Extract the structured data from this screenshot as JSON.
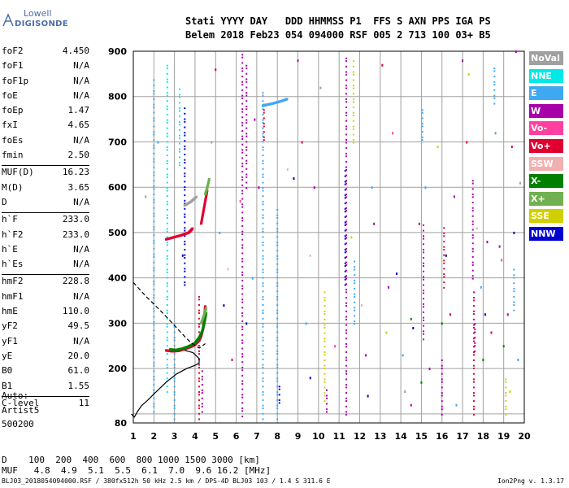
{
  "logo": {
    "line1": "Lowell",
    "line2": "DIGISONDE"
  },
  "header": {
    "row1": "Stati YYYY DAY   DDD HHMMSS P1  FFS S AXN PPS IGA PS",
    "row2": "Belem 2018 Feb23 054 094000 RSF 005 2 713 100 03+ B5"
  },
  "params": [
    {
      "name": "foF2",
      "value": "4.450"
    },
    {
      "name": "foF1",
      "value": "N/A"
    },
    {
      "name": "foF1p",
      "value": "N/A"
    },
    {
      "name": "foE",
      "value": "N/A"
    },
    {
      "name": "foEp",
      "value": "1.47"
    },
    {
      "name": "fxI",
      "value": "4.65"
    },
    {
      "name": "foEs",
      "value": "N/A"
    },
    {
      "name": "fmin",
      "value": "2.50"
    },
    {
      "name": "MUF(D)",
      "value": "16.23"
    },
    {
      "name": "M(D)",
      "value": "3.65"
    },
    {
      "name": "D",
      "value": "N/A"
    },
    {
      "name": "h`F",
      "value": "233.0"
    },
    {
      "name": "h`F2",
      "value": "233.0"
    },
    {
      "name": "h`E",
      "value": "N/A"
    },
    {
      "name": "h`Es",
      "value": "N/A"
    },
    {
      "name": "hmF2",
      "value": "228.8"
    },
    {
      "name": "hmF1",
      "value": "N/A"
    },
    {
      "name": "hmE",
      "value": "110.0"
    },
    {
      "name": "yF2",
      "value": "49.5"
    },
    {
      "name": "yF1",
      "value": "N/A"
    },
    {
      "name": "yE",
      "value": "20.0"
    },
    {
      "name": "B0",
      "value": "61.0"
    },
    {
      "name": "B1",
      "value": "1.55"
    },
    {
      "name": "C-level",
      "value": "11"
    }
  ],
  "auto": {
    "line1": "Auto:",
    "line2": "Artist5",
    "line3": "500200"
  },
  "legend": [
    {
      "label": "NoVal",
      "color": "#a0a0a0"
    },
    {
      "label": "NNE",
      "color": "#00e8e8"
    },
    {
      "label": "E",
      "color": "#40a8f0"
    },
    {
      "label": "W",
      "color": "#a800a8"
    },
    {
      "label": "Vo-",
      "color": "#ff40a0"
    },
    {
      "label": "Vo+",
      "color": "#e00030"
    },
    {
      "label": "SSW",
      "color": "#f0b0b0"
    },
    {
      "label": "X-",
      "color": "#008000"
    },
    {
      "label": "X+",
      "color": "#70b050"
    },
    {
      "label": "SSE",
      "color": "#d0d000"
    },
    {
      "label": "NNW",
      "color": "#0000d0"
    }
  ],
  "footer": {
    "d_row": "D    100  200  400  600  800 1000 1500 3000 [km]",
    "muf_row": "MUF   4.8  4.9  5.1  5.5  6.1  7.0  9.6 16.2 [MHz]",
    "file_line": "BLJ03_2018054094000.RSF / 380fx512h 50 kHz 2.5 km / DPS-4D BLJ03 103 / 1.4 S 311.6 E",
    "version": "Ion2Png v. 1.3.17"
  },
  "chart_data": {
    "type": "scatter",
    "xlim": [
      1,
      20
    ],
    "ylim": [
      80,
      900
    ],
    "x_ticks": [
      1,
      2,
      3,
      4,
      5,
      6,
      7,
      8,
      9,
      10,
      11,
      12,
      13,
      14,
      15,
      16,
      17,
      18,
      19,
      20
    ],
    "y_ticks": [
      80,
      100,
      200,
      300,
      400,
      500,
      600,
      700,
      800,
      900
    ],
    "y_tick_labels": [
      "80",
      "",
      "200",
      "300",
      "400",
      "500",
      "600",
      "700",
      "800",
      "900"
    ],
    "grid": true,
    "profile_curve": [
      [
        0.9,
        100
      ],
      [
        1.05,
        93
      ],
      [
        1.2,
        105
      ],
      [
        1.4,
        118
      ],
      [
        1.7,
        130
      ],
      [
        2.1,
        148
      ],
      [
        2.6,
        170
      ],
      [
        3.1,
        188
      ],
      [
        3.6,
        200
      ],
      [
        4.0,
        207
      ],
      [
        4.2,
        212
      ],
      [
        4.2,
        222
      ],
      [
        3.9,
        235
      ],
      [
        3.5,
        240
      ]
    ],
    "dashed_curve": [
      [
        1.0,
        390
      ],
      [
        1.6,
        360
      ],
      [
        2.2,
        333
      ],
      [
        2.8,
        305
      ],
      [
        3.3,
        280
      ],
      [
        3.8,
        257
      ],
      [
        4.2,
        245
      ],
      [
        4.5,
        255
      ]
    ],
    "traces": [
      {
        "color": "#e00030",
        "points": [
          [
            2.6,
            240
          ],
          [
            2.9,
            238
          ],
          [
            3.2,
            239
          ],
          [
            3.5,
            243
          ],
          [
            3.8,
            248
          ],
          [
            4.0,
            253
          ],
          [
            4.2,
            262
          ],
          [
            4.3,
            272
          ],
          [
            4.4,
            290
          ],
          [
            4.45,
            315
          ],
          [
            4.5,
            340
          ]
        ]
      },
      {
        "color": "#008000",
        "points": [
          [
            2.8,
            242
          ],
          [
            3.1,
            241
          ],
          [
            3.4,
            244
          ],
          [
            3.7,
            249
          ],
          [
            4.0,
            256
          ],
          [
            4.2,
            268
          ],
          [
            4.35,
            282
          ],
          [
            4.45,
            300
          ],
          [
            4.55,
            325
          ]
        ]
      },
      {
        "color": "#70b050",
        "points": [
          [
            4.3,
            300
          ],
          [
            4.45,
            320
          ],
          [
            4.55,
            335
          ]
        ]
      },
      {
        "color": "#e00030",
        "points": [
          [
            2.6,
            485
          ],
          [
            3.0,
            490
          ],
          [
            3.4,
            495
          ],
          [
            3.7,
            500
          ],
          [
            3.9,
            510
          ]
        ]
      },
      {
        "color": "#e00030",
        "points": [
          [
            4.3,
            520
          ],
          [
            4.4,
            545
          ],
          [
            4.5,
            570
          ],
          [
            4.6,
            595
          ]
        ]
      },
      {
        "color": "#70b050",
        "points": [
          [
            4.5,
            585
          ],
          [
            4.6,
            600
          ],
          [
            4.7,
            620
          ]
        ]
      },
      {
        "color": "#a0a0a0",
        "points": [
          [
            3.5,
            560
          ],
          [
            3.8,
            568
          ],
          [
            4.1,
            580
          ]
        ]
      },
      {
        "color": "#40a8f0",
        "points": [
          [
            7.3,
            780
          ],
          [
            7.5,
            782
          ],
          [
            7.8,
            785
          ],
          [
            8.2,
            790
          ],
          [
            8.5,
            795
          ]
        ]
      }
    ],
    "columns": [
      {
        "x": 2.0,
        "y0": 100,
        "y1": 840,
        "color": "#40a8f0"
      },
      {
        "x": 2.65,
        "y0": 150,
        "y1": 880,
        "color": "#00e8e8"
      },
      {
        "x": 3.0,
        "y0": 90,
        "y1": 300,
        "color": "#40a8f0"
      },
      {
        "x": 3.25,
        "y0": 650,
        "y1": 820,
        "color": "#00e8e8"
      },
      {
        "x": 3.5,
        "y0": 380,
        "y1": 780,
        "color": "#0000d0"
      },
      {
        "x": 4.2,
        "y0": 90,
        "y1": 360,
        "color": "#e00030"
      },
      {
        "x": 4.35,
        "y0": 100,
        "y1": 200,
        "color": "#a800a8"
      },
      {
        "x": 6.3,
        "y0": 90,
        "y1": 900,
        "color": "#a800a8"
      },
      {
        "x": 6.5,
        "y0": 600,
        "y1": 870,
        "color": "#a800a8"
      },
      {
        "x": 7.3,
        "y0": 90,
        "y1": 820,
        "color": "#40a8f0"
      },
      {
        "x": 7.35,
        "y0": 700,
        "y1": 790,
        "color": "#e00030"
      },
      {
        "x": 8.0,
        "y0": 90,
        "y1": 560,
        "color": "#40a8f0"
      },
      {
        "x": 8.1,
        "y0": 120,
        "y1": 170,
        "color": "#0000d0"
      },
      {
        "x": 10.3,
        "y0": 130,
        "y1": 380,
        "color": "#d0d000"
      },
      {
        "x": 10.4,
        "y0": 100,
        "y1": 160,
        "color": "#a800a8"
      },
      {
        "x": 11.3,
        "y0": 380,
        "y1": 640,
        "color": "#0000d0"
      },
      {
        "x": 11.35,
        "y0": 100,
        "y1": 890,
        "color": "#a800a8"
      },
      {
        "x": 11.7,
        "y0": 700,
        "y1": 880,
        "color": "#d0d000"
      },
      {
        "x": 11.75,
        "y0": 300,
        "y1": 440,
        "color": "#40a8f0"
      },
      {
        "x": 15.1,
        "y0": 260,
        "y1": 520,
        "color": "#a800a8"
      },
      {
        "x": 15.05,
        "y0": 700,
        "y1": 780,
        "color": "#40a8f0"
      },
      {
        "x": 16.1,
        "y0": 380,
        "y1": 520,
        "color": "#e00030"
      },
      {
        "x": 16.0,
        "y0": 100,
        "y1": 220,
        "color": "#a800a8"
      },
      {
        "x": 17.5,
        "y0": 400,
        "y1": 620,
        "color": "#a800a8"
      },
      {
        "x": 17.55,
        "y0": 100,
        "y1": 380,
        "color": "#e00030"
      },
      {
        "x": 17.6,
        "y0": 240,
        "y1": 300,
        "color": "#a800a8"
      },
      {
        "x": 18.55,
        "y0": 780,
        "y1": 870,
        "color": "#40a8f0"
      },
      {
        "x": 19.5,
        "y0": 330,
        "y1": 420,
        "color": "#40a8f0"
      },
      {
        "x": 19.1,
        "y0": 100,
        "y1": 180,
        "color": "#d0d000"
      }
    ],
    "scatter": [
      {
        "color": "#a800a8",
        "points": [
          [
            6.9,
            750
          ],
          [
            7.1,
            600
          ],
          [
            9.0,
            880
          ],
          [
            9.8,
            600
          ],
          [
            12.3,
            230
          ],
          [
            12.7,
            520
          ],
          [
            13.4,
            380
          ],
          [
            14.5,
            120
          ],
          [
            15.4,
            200
          ],
          [
            16.6,
            580
          ],
          [
            17.0,
            880
          ],
          [
            18.2,
            480
          ],
          [
            18.8,
            470
          ],
          [
            19.2,
            320
          ],
          [
            19.6,
            900
          ]
        ]
      },
      {
        "color": "#0000d0",
        "points": [
          [
            3.4,
            450
          ],
          [
            5.4,
            340
          ],
          [
            6.5,
            300
          ],
          [
            8.8,
            620
          ],
          [
            9.6,
            180
          ],
          [
            12.4,
            140
          ],
          [
            13.8,
            410
          ],
          [
            14.6,
            290
          ],
          [
            16.2,
            450
          ],
          [
            18.1,
            320
          ],
          [
            19.5,
            500
          ]
        ]
      },
      {
        "color": "#40a8f0",
        "points": [
          [
            2.2,
            700
          ],
          [
            5.2,
            500
          ],
          [
            6.8,
            400
          ],
          [
            9.4,
            300
          ],
          [
            12.6,
            600
          ],
          [
            14.1,
            230
          ],
          [
            15.2,
            600
          ],
          [
            16.7,
            120
          ],
          [
            17.9,
            380
          ],
          [
            18.6,
            720
          ],
          [
            19.7,
            220
          ]
        ]
      },
      {
        "color": "#e00030",
        "points": [
          [
            5.0,
            860
          ],
          [
            5.8,
            220
          ],
          [
            9.2,
            700
          ],
          [
            13.1,
            870
          ],
          [
            14.9,
            520
          ],
          [
            16.4,
            320
          ],
          [
            17.2,
            700
          ],
          [
            18.4,
            280
          ],
          [
            19.4,
            690
          ]
        ]
      },
      {
        "color": "#008000",
        "points": [
          [
            14.5,
            310
          ],
          [
            15.0,
            170
          ],
          [
            18.0,
            220
          ],
          [
            19.0,
            250
          ],
          [
            16.0,
            300
          ]
        ]
      },
      {
        "color": "#d0d000",
        "points": [
          [
            11.6,
            490
          ],
          [
            13.3,
            280
          ],
          [
            15.8,
            690
          ],
          [
            17.3,
            850
          ],
          [
            19.3,
            150
          ]
        ]
      },
      {
        "color": "#f0b0b0",
        "points": [
          [
            5.6,
            420
          ],
          [
            8.5,
            640
          ],
          [
            12.1,
            340
          ],
          [
            17.7,
            510
          ],
          [
            9.6,
            450
          ]
        ]
      },
      {
        "color": "#ff40a0",
        "points": [
          [
            6.2,
            570
          ],
          [
            10.8,
            250
          ],
          [
            13.6,
            720
          ],
          [
            18.9,
            440
          ]
        ]
      },
      {
        "color": "#a0a0a0",
        "points": [
          [
            1.6,
            580
          ],
          [
            4.8,
            700
          ],
          [
            10.1,
            820
          ],
          [
            14.2,
            150
          ],
          [
            19.8,
            610
          ]
        ]
      }
    ]
  }
}
